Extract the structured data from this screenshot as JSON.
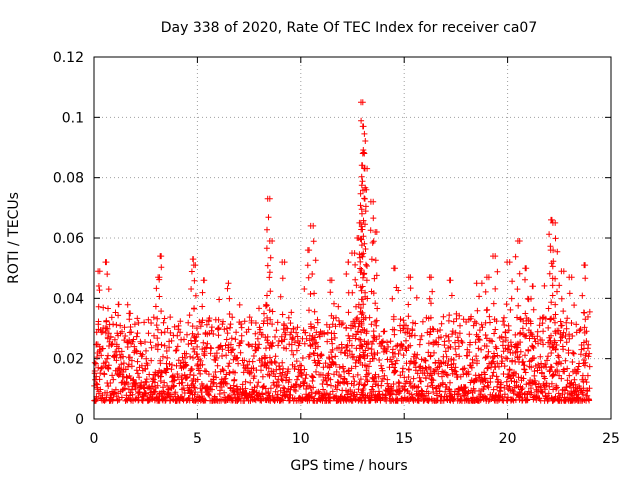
{
  "chart_data": {
    "type": "scatter",
    "title": "Day 338 of 2020, Rate Of TEC Index for receiver ca07",
    "xlabel": "GPS time / hours",
    "ylabel": "ROTI / TECUs",
    "xlim": [
      0,
      25
    ],
    "ylim": [
      0,
      0.12
    ],
    "xticks": [
      "0",
      "5",
      "10",
      "15",
      "20",
      "25"
    ],
    "yticks": [
      "0",
      "0.02",
      "0.04",
      "0.06",
      "0.08",
      "0.1",
      "0.12"
    ],
    "grid": true,
    "marker": "plus",
    "color": "#ff0000",
    "series": [
      {
        "name": "ROTI",
        "sampling": "dense scatter of ROTI samples, roughly every 0.02 h across 0–24 h; typical values 0.005–0.03 TECU/s",
        "peaks": [
          {
            "x": 0.2,
            "y": 0.049
          },
          {
            "x": 0.6,
            "y": 0.052
          },
          {
            "x": 1.2,
            "y": 0.038
          },
          {
            "x": 1.7,
            "y": 0.035
          },
          {
            "x": 3.2,
            "y": 0.054
          },
          {
            "x": 3.1,
            "y": 0.047
          },
          {
            "x": 4.8,
            "y": 0.053
          },
          {
            "x": 4.9,
            "y": 0.051
          },
          {
            "x": 5.3,
            "y": 0.046
          },
          {
            "x": 6.5,
            "y": 0.045
          },
          {
            "x": 8.4,
            "y": 0.073
          },
          {
            "x": 8.5,
            "y": 0.059
          },
          {
            "x": 9.1,
            "y": 0.052
          },
          {
            "x": 10.4,
            "y": 0.056
          },
          {
            "x": 10.6,
            "y": 0.064
          },
          {
            "x": 11.5,
            "y": 0.046
          },
          {
            "x": 12.3,
            "y": 0.052
          },
          {
            "x": 12.6,
            "y": 0.055
          },
          {
            "x": 12.8,
            "y": 0.06
          },
          {
            "x": 12.9,
            "y": 0.065
          },
          {
            "x": 13.0,
            "y": 0.105
          },
          {
            "x": 13.0,
            "y": 0.097
          },
          {
            "x": 13.0,
            "y": 0.088
          },
          {
            "x": 13.1,
            "y": 0.083
          },
          {
            "x": 13.1,
            "y": 0.076
          },
          {
            "x": 13.5,
            "y": 0.072
          },
          {
            "x": 13.6,
            "y": 0.062
          },
          {
            "x": 14.5,
            "y": 0.05
          },
          {
            "x": 15.3,
            "y": 0.047
          },
          {
            "x": 16.3,
            "y": 0.047
          },
          {
            "x": 17.2,
            "y": 0.046
          },
          {
            "x": 18.5,
            "y": 0.045
          },
          {
            "x": 19.0,
            "y": 0.047
          },
          {
            "x": 19.4,
            "y": 0.054
          },
          {
            "x": 20.1,
            "y": 0.052
          },
          {
            "x": 20.5,
            "y": 0.059
          },
          {
            "x": 20.9,
            "y": 0.05
          },
          {
            "x": 21.2,
            "y": 0.044
          },
          {
            "x": 22.1,
            "y": 0.066
          },
          {
            "x": 22.3,
            "y": 0.065
          },
          {
            "x": 22.2,
            "y": 0.056
          },
          {
            "x": 22.6,
            "y": 0.049
          },
          {
            "x": 23.1,
            "y": 0.047
          },
          {
            "x": 23.7,
            "y": 0.051
          }
        ]
      }
    ]
  }
}
